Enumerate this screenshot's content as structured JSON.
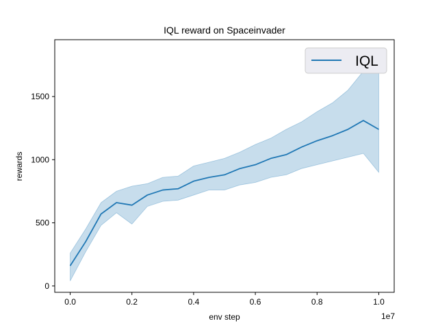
{
  "chart_data": {
    "type": "line",
    "title": "IQL reward on Spaceinvader",
    "xlabel": "env step",
    "ylabel": "rewards",
    "x_scale_label": "1e7",
    "xlim": [
      -0.05,
      1.05
    ],
    "ylim": [
      -50,
      1950
    ],
    "x_ticks": [
      0.0,
      0.2,
      0.4,
      0.6,
      0.8,
      1.0
    ],
    "x_tick_labels": [
      "0.0",
      "0.2",
      "0.4",
      "0.6",
      "0.8",
      "1.0"
    ],
    "y_ticks": [
      0,
      500,
      1000,
      1500
    ],
    "y_tick_labels": [
      "0",
      "500",
      "1000",
      "1500"
    ],
    "grid": false,
    "legend": {
      "position": "top-right",
      "entries": [
        "IQL"
      ]
    },
    "series": [
      {
        "name": "IQL",
        "color": "#1f77b4",
        "band_color": "#1f77b4",
        "x": [
          0.0,
          0.05,
          0.1,
          0.15,
          0.2,
          0.25,
          0.3,
          0.35,
          0.4,
          0.45,
          0.5,
          0.55,
          0.6,
          0.65,
          0.7,
          0.75,
          0.8,
          0.85,
          0.9,
          0.95,
          1.0
        ],
        "y": [
          160,
          350,
          570,
          660,
          640,
          720,
          760,
          770,
          830,
          860,
          880,
          930,
          960,
          1010,
          1040,
          1100,
          1150,
          1190,
          1240,
          1310,
          1240
        ],
        "lower": [
          40,
          270,
          480,
          580,
          490,
          630,
          670,
          680,
          720,
          760,
          760,
          800,
          820,
          860,
          880,
          930,
          960,
          990,
          1020,
          1050,
          900
        ],
        "upper": [
          260,
          450,
          660,
          750,
          790,
          810,
          860,
          870,
          950,
          980,
          1010,
          1060,
          1120,
          1170,
          1240,
          1300,
          1380,
          1450,
          1550,
          1700,
          1760
        ]
      }
    ]
  }
}
